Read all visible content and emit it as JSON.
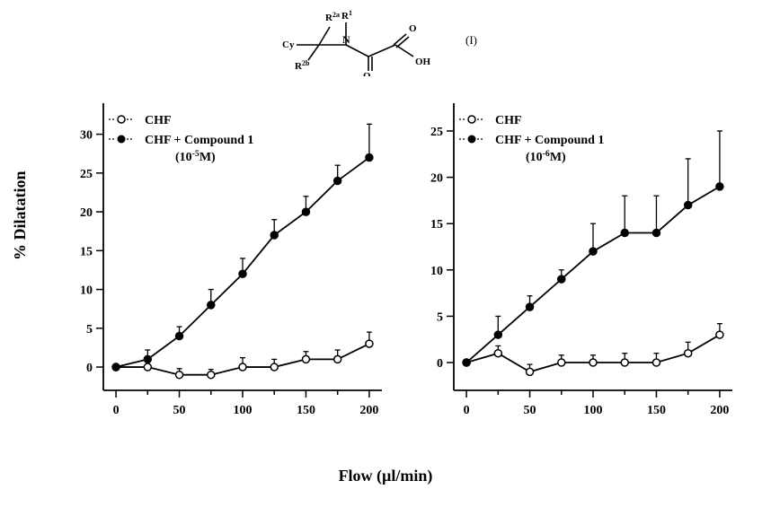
{
  "molecule_label": "(I)",
  "y_axis_label": "% Dilatation",
  "x_axis_label": "Flow (µl/min)",
  "colors": {
    "background": "#ffffff",
    "axis": "#000000",
    "series_chf": "#000000",
    "series_treated": "#000000"
  },
  "marker": {
    "radius": 4,
    "stroke_width": 1.5,
    "line_width": 1.8,
    "errbar_width": 6
  },
  "typography": {
    "tick_fontsize": 14,
    "legend_fontsize": 14,
    "legend_conc_fontsize": 14,
    "axis_label_fontsize": 18
  },
  "panels": [
    {
      "id": "panel-left",
      "xlim": [
        -10,
        210
      ],
      "ylim": [
        -3,
        34
      ],
      "xticks": [
        0,
        50,
        100,
        150,
        200
      ],
      "xminor": [
        25,
        75,
        125,
        175
      ],
      "yticks": [
        0,
        5,
        10,
        15,
        20,
        25,
        30
      ],
      "legend_chf": "CHF",
      "legend_treated_line1": "CHF + Compound 1",
      "legend_treated_line2_prefix": "(10",
      "legend_treated_line2_exp": "-5",
      "legend_treated_line2_suffix": "M)",
      "series_chf": {
        "x": [
          0,
          25,
          50,
          75,
          100,
          125,
          150,
          175,
          200
        ],
        "y": [
          0,
          0,
          -1,
          -1,
          0,
          0,
          1,
          1,
          3
        ],
        "err": [
          0,
          0.7,
          0.8,
          0.7,
          1.2,
          1.0,
          1.0,
          1.2,
          1.5
        ]
      },
      "series_treated": {
        "x": [
          0,
          25,
          50,
          75,
          100,
          125,
          150,
          175,
          200
        ],
        "y": [
          0,
          1,
          4,
          8,
          12,
          17,
          20,
          24,
          27
        ],
        "err": [
          0,
          1.2,
          1.2,
          2.0,
          2.0,
          2.0,
          2.0,
          2.0,
          4.3
        ]
      }
    },
    {
      "id": "panel-right",
      "xlim": [
        -10,
        210
      ],
      "ylim": [
        -3,
        28
      ],
      "xticks": [
        0,
        50,
        100,
        150,
        200
      ],
      "xminor": [
        25,
        75,
        125,
        175
      ],
      "yticks": [
        0,
        5,
        10,
        15,
        20,
        25
      ],
      "legend_chf": "CHF",
      "legend_treated_line1": "CHF + Compound 1",
      "legend_treated_line2_prefix": "(10",
      "legend_treated_line2_exp": "-6",
      "legend_treated_line2_suffix": "M)",
      "series_chf": {
        "x": [
          0,
          25,
          50,
          75,
          100,
          125,
          150,
          175,
          200
        ],
        "y": [
          0,
          1,
          -1,
          0,
          0,
          0,
          0,
          1,
          3
        ],
        "err": [
          0,
          0.8,
          0.8,
          0.8,
          0.8,
          1.0,
          1.0,
          1.2,
          1.2
        ]
      },
      "series_treated": {
        "x": [
          0,
          25,
          50,
          75,
          100,
          125,
          150,
          175,
          200
        ],
        "y": [
          0,
          3,
          6,
          9,
          12,
          14,
          14,
          17,
          19
        ],
        "err": [
          0,
          2.0,
          1.2,
          1.0,
          3.0,
          4.0,
          4.0,
          5.0,
          6.0
        ]
      }
    }
  ]
}
